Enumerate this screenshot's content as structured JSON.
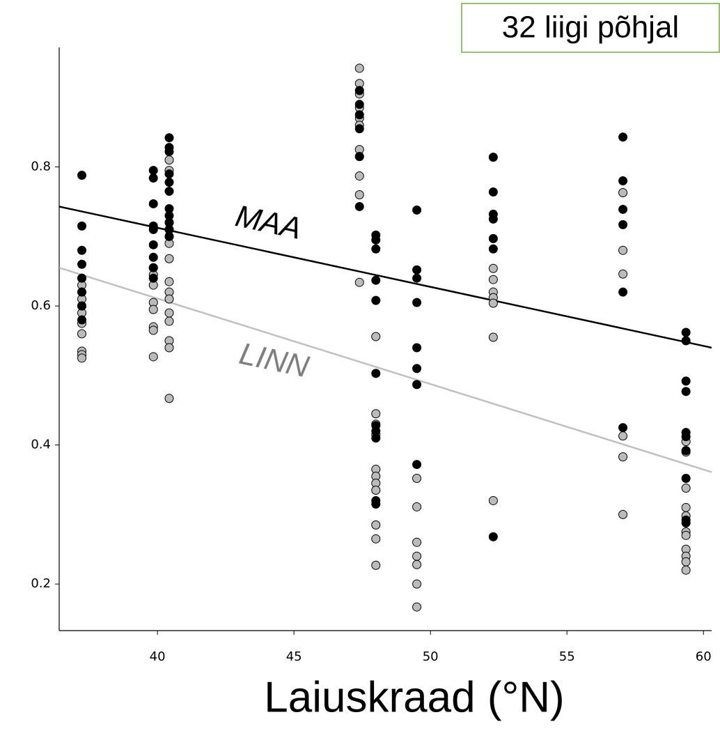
{
  "chart_data": {
    "type": "scatter",
    "annotation": "32 liigi põhjal",
    "xlabel": "Laiuskraad (°N)",
    "xlim": [
      36.4,
      60.3
    ],
    "ylim": [
      0.133,
      0.972
    ],
    "xticks": [
      40,
      45,
      50,
      55,
      60
    ],
    "yticks": [
      0.2,
      0.4,
      0.6,
      0.8
    ],
    "series": [
      {
        "name": "MAA",
        "color": "#000000",
        "line_color": "#000000",
        "x": [
          37.23,
          37.23,
          37.23,
          37.23,
          37.23,
          37.23,
          37.23,
          37.23,
          39.85,
          39.85,
          39.85,
          39.85,
          39.85,
          39.85,
          39.85,
          39.85,
          39.85,
          40.43,
          40.43,
          40.43,
          40.43,
          40.43,
          40.43,
          40.43,
          40.43,
          40.43,
          40.43,
          40.43,
          47.4,
          47.4,
          47.4,
          47.4,
          47.4,
          47.4,
          48.0,
          48.0,
          48.0,
          48.0,
          48.0,
          48.0,
          48.0,
          48.0,
          48.0,
          48.0,
          48.0,
          49.5,
          49.5,
          49.5,
          49.5,
          49.5,
          49.5,
          49.5,
          49.5,
          52.3,
          52.3,
          52.3,
          52.3,
          52.3,
          52.3,
          52.3,
          57.05,
          57.05,
          57.05,
          57.05,
          57.05,
          57.05,
          59.36,
          59.36,
          59.36,
          59.36,
          59.36,
          59.36,
          59.36,
          59.36,
          59.36,
          59.36
        ],
        "values": [
          0.788,
          0.715,
          0.68,
          0.66,
          0.64,
          0.62,
          0.6,
          0.58,
          0.795,
          0.784,
          0.747,
          0.715,
          0.71,
          0.688,
          0.67,
          0.655,
          0.64,
          0.842,
          0.828,
          0.822,
          0.79,
          0.778,
          0.765,
          0.74,
          0.73,
          0.72,
          0.71,
          0.7,
          0.91,
          0.89,
          0.875,
          0.855,
          0.815,
          0.743,
          0.702,
          0.695,
          0.682,
          0.637,
          0.608,
          0.503,
          0.428,
          0.42,
          0.41,
          0.32,
          0.315,
          0.738,
          0.652,
          0.64,
          0.605,
          0.54,
          0.51,
          0.487,
          0.372,
          0.814,
          0.764,
          0.732,
          0.725,
          0.697,
          0.682,
          0.268,
          0.843,
          0.78,
          0.739,
          0.717,
          0.62,
          0.425,
          0.562,
          0.55,
          0.492,
          0.477,
          0.418,
          0.412,
          0.392,
          0.352,
          0.292,
          0.288
        ],
        "fit": {
          "x": [
            36.4,
            60.3
          ],
          "values": [
            0.743,
            0.54
          ]
        }
      },
      {
        "name": "LINN",
        "color": "#bbbbbb",
        "line_color": "#c0c0c0",
        "x": [
          37.23,
          37.23,
          37.23,
          37.23,
          37.23,
          37.23,
          37.23,
          37.23,
          37.23,
          37.23,
          37.23,
          39.85,
          39.85,
          39.85,
          39.85,
          39.85,
          39.85,
          39.85,
          39.85,
          40.43,
          40.43,
          40.43,
          40.43,
          40.43,
          40.43,
          40.43,
          40.43,
          40.43,
          40.43,
          40.43,
          40.43,
          40.43,
          40.43,
          40.43,
          47.4,
          47.4,
          47.4,
          47.4,
          47.4,
          47.4,
          47.4,
          47.4,
          47.4,
          47.4,
          47.4,
          48.0,
          48.0,
          48.0,
          48.0,
          48.0,
          48.0,
          48.0,
          48.0,
          48.0,
          48.0,
          48.0,
          49.5,
          49.5,
          49.5,
          49.5,
          49.5,
          49.5,
          49.5,
          52.3,
          52.3,
          52.3,
          52.3,
          52.3,
          52.3,
          52.3,
          57.05,
          57.05,
          57.05,
          57.05,
          57.05,
          57.05,
          59.36,
          59.36,
          59.36,
          59.36,
          59.36,
          59.36,
          59.36,
          59.36,
          59.36,
          59.36,
          59.36
        ],
        "values": [
          0.64,
          0.63,
          0.62,
          0.61,
          0.6,
          0.59,
          0.575,
          0.56,
          0.535,
          0.53,
          0.525,
          0.655,
          0.645,
          0.63,
          0.605,
          0.595,
          0.57,
          0.565,
          0.527,
          0.81,
          0.795,
          0.72,
          0.71,
          0.7,
          0.69,
          0.668,
          0.635,
          0.62,
          0.61,
          0.59,
          0.578,
          0.55,
          0.54,
          0.467,
          0.942,
          0.92,
          0.905,
          0.885,
          0.87,
          0.86,
          0.825,
          0.815,
          0.787,
          0.76,
          0.634,
          0.556,
          0.445,
          0.43,
          0.415,
          0.365,
          0.355,
          0.345,
          0.335,
          0.285,
          0.265,
          0.227,
          0.352,
          0.311,
          0.26,
          0.24,
          0.228,
          0.2,
          0.167,
          0.654,
          0.638,
          0.62,
          0.612,
          0.604,
          0.555,
          0.32,
          0.763,
          0.68,
          0.646,
          0.413,
          0.383,
          0.3,
          0.405,
          0.39,
          0.338,
          0.31,
          0.298,
          0.275,
          0.27,
          0.25,
          0.24,
          0.232,
          0.22
        ],
        "fit": {
          "x": [
            36.4,
            60.3
          ],
          "values": [
            0.655,
            0.361
          ]
        }
      }
    ]
  }
}
